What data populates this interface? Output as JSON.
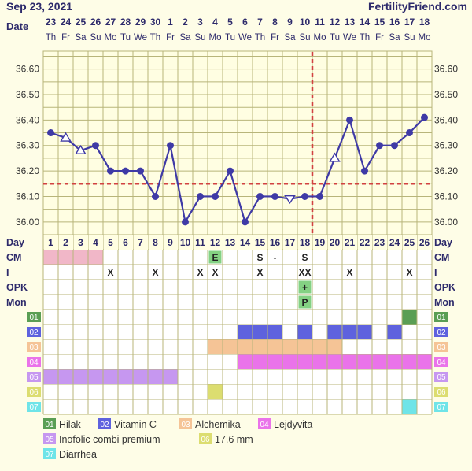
{
  "header": {
    "date": "Sep 23, 2021",
    "brand": "FertilityFriend.com"
  },
  "labels": {
    "date": "Date",
    "day": "Day",
    "cm": "CM",
    "i": "I",
    "opk": "OPK",
    "mon": "Mon"
  },
  "dates": [
    "23",
    "24",
    "25",
    "26",
    "27",
    "28",
    "29",
    "30",
    "1",
    "2",
    "3",
    "4",
    "5",
    "6",
    "7",
    "8",
    "9",
    "10",
    "11",
    "12",
    "13",
    "14",
    "15",
    "16",
    "17",
    "18"
  ],
  "weekdays": [
    "Th",
    "Fr",
    "Sa",
    "Su",
    "Mo",
    "Tu",
    "We",
    "Th",
    "Fr",
    "Sa",
    "Su",
    "Mo",
    "Tu",
    "We",
    "Th",
    "Fr",
    "Sa",
    "Su",
    "Mo",
    "Tu",
    "We",
    "Th",
    "Fr",
    "Sa",
    "Su",
    "Mo"
  ],
  "cycle_days": [
    "1",
    "2",
    "3",
    "4",
    "5",
    "6",
    "7",
    "8",
    "9",
    "10",
    "11",
    "12",
    "13",
    "14",
    "15",
    "16",
    "17",
    "18",
    "19",
    "20",
    "21",
    "22",
    "23",
    "24",
    "25",
    "26"
  ],
  "y_ticks": [
    "36.60",
    "36.50",
    "36.40",
    "36.30",
    "36.20",
    "36.10",
    "36.00"
  ],
  "colors": {
    "line": "#3f3aa6",
    "marker_fill": "#ffffff",
    "grid": "#b8b57a",
    "plot_bg": "#fffee2",
    "coverline": "#d24141",
    "period": "#f1b7c8",
    "header_text": "#2d2a6b",
    "c01": "#5a9e54",
    "c02": "#5e62de",
    "c03": "#f5c496",
    "c04": "#ea73ea",
    "c05": "#c697f0",
    "c06": "#dcdd70",
    "c07": "#6fe4e8",
    "mark_e": "#84d183",
    "mark_opk": "#84d183"
  },
  "chart_data": {
    "type": "line",
    "xlabel": "Day",
    "ylabel": "",
    "ylim": [
      35.95,
      36.67
    ],
    "x": [
      1,
      2,
      3,
      4,
      5,
      6,
      7,
      8,
      9,
      10,
      11,
      12,
      13,
      14,
      15,
      16,
      17,
      18,
      19,
      20,
      21,
      22,
      23,
      24,
      25,
      26
    ],
    "series": [
      {
        "values": [
          36.35,
          36.33,
          36.28,
          36.3,
          36.2,
          36.2,
          36.2,
          36.1,
          36.3,
          36.0,
          36.1,
          36.1,
          36.2,
          36.0,
          36.1,
          36.1,
          36.09,
          36.1,
          36.1,
          36.25,
          36.4,
          36.2,
          36.3,
          36.3,
          36.35,
          36.41
        ],
        "markers": [
          "o",
          "t",
          "t",
          "o",
          "o",
          "o",
          "o",
          "o",
          "o",
          "o",
          "o",
          "o",
          "o",
          "o",
          "o",
          "o",
          "v",
          "o",
          "o",
          "t",
          "o",
          "o",
          "o",
          "o",
          "o",
          "o"
        ]
      }
    ],
    "coverline": 36.15,
    "ovulation_day": 19
  },
  "rows": {
    "cm": {
      "12": "E",
      "15": "S",
      "16": "-",
      "18": "S"
    },
    "i": {
      "5": "X",
      "8": "X",
      "11": "X",
      "12": "X",
      "15": "X",
      "18": "XX",
      "21": "X",
      "25": "X"
    },
    "opk": {
      "18": "+"
    },
    "mon": {
      "18": "P"
    },
    "period_days": [
      1,
      2,
      3,
      4
    ]
  },
  "meds": [
    {
      "id": "01",
      "name": "Hilak",
      "color": "#5a9e54",
      "days": [
        25
      ]
    },
    {
      "id": "02",
      "name": "Vitamin C",
      "color": "#5e62de",
      "days": [
        14,
        15,
        16,
        18,
        20,
        21,
        22,
        24
      ]
    },
    {
      "id": "03",
      "name": "Alchemika",
      "color": "#f5c496",
      "days": [
        12,
        13,
        14,
        15,
        16,
        17,
        18,
        19,
        20
      ]
    },
    {
      "id": "04",
      "name": "Lejdyvita",
      "color": "#ea73ea",
      "days": [
        14,
        15,
        16,
        17,
        18,
        19,
        20,
        21,
        22,
        23,
        24,
        25,
        26
      ]
    },
    {
      "id": "05",
      "name": "Inofolic combi premium",
      "color": "#c697f0",
      "days": [
        1,
        2,
        3,
        4,
        5,
        6,
        7,
        8,
        9
      ]
    },
    {
      "id": "06",
      "name": "17.6 mm",
      "color": "#dcdd70",
      "days": [
        12
      ]
    },
    {
      "id": "07",
      "name": "Diarrhea",
      "color": "#6fe4e8",
      "days": [
        25
      ]
    }
  ]
}
